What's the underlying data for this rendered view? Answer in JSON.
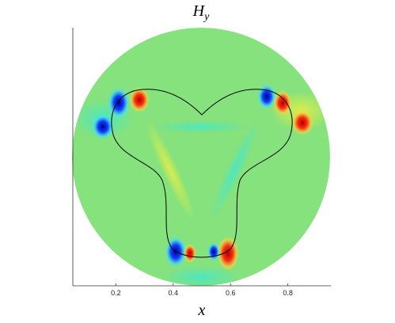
{
  "chart_data": {
    "type": "field",
    "title_main": "H",
    "title_sub": "y",
    "xlabel": "x",
    "xlim": [
      0.05,
      0.95
    ],
    "xticks": [
      0.2,
      0.4,
      0.6,
      0.8
    ]
  }
}
